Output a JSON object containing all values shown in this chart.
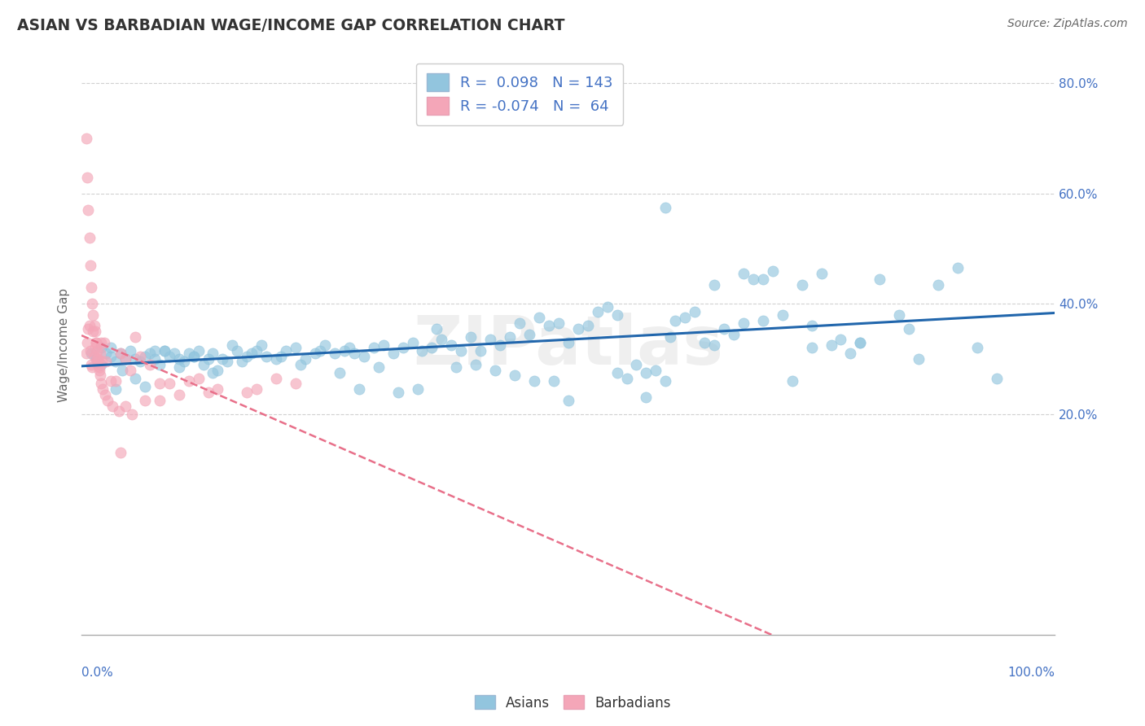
{
  "title": "ASIAN VS BARBADIAN WAGE/INCOME GAP CORRELATION CHART",
  "source_text": "Source: ZipAtlas.com",
  "ylabel": "Wage/Income Gap",
  "xlim": [
    0.0,
    100.0
  ],
  "ylim": [
    -20.0,
    85.0
  ],
  "y_ticks": [
    0.0,
    20.0,
    40.0,
    60.0,
    80.0
  ],
  "y_tick_labels": [
    "",
    "20.0%",
    "40.0%",
    "60.0%",
    "80.0%"
  ],
  "asian_R": 0.098,
  "asian_N": 143,
  "barbadian_R": -0.074,
  "barbadian_N": 64,
  "asian_color": "#92c5de",
  "barbadian_color": "#f4a6b8",
  "asian_line_color": "#2166ac",
  "barbadian_line_color": "#e8708a",
  "watermark": "ZIPatlas",
  "watermark_color": "#d8d8d8",
  "background_color": "#ffffff",
  "grid_color": "#cccccc",
  "title_color": "#333333",
  "axis_label_color": "#4472c4",
  "legend_label_color": "#4472c4",
  "asian_x": [
    1.0,
    1.5,
    2.0,
    2.0,
    2.5,
    3.0,
    3.5,
    4.0,
    4.5,
    5.0,
    5.5,
    6.0,
    6.5,
    7.0,
    7.5,
    8.0,
    8.5,
    9.0,
    9.5,
    10.0,
    10.5,
    11.0,
    11.5,
    12.0,
    13.0,
    13.5,
    14.0,
    15.0,
    16.0,
    17.0,
    17.5,
    18.0,
    19.0,
    20.0,
    21.0,
    22.0,
    23.0,
    24.0,
    25.0,
    26.0,
    27.0,
    27.5,
    28.0,
    29.0,
    30.0,
    31.0,
    32.0,
    33.0,
    34.0,
    35.0,
    36.0,
    37.0,
    38.0,
    39.0,
    40.0,
    41.0,
    42.0,
    43.0,
    44.0,
    45.0,
    46.0,
    47.0,
    48.0,
    49.0,
    50.0,
    51.0,
    52.0,
    53.0,
    54.0,
    55.0,
    56.0,
    57.0,
    58.0,
    59.0,
    60.0,
    61.0,
    62.0,
    63.0,
    64.0,
    65.0,
    66.0,
    67.0,
    68.0,
    69.0,
    70.0,
    71.0,
    72.0,
    73.0,
    74.0,
    75.0,
    76.0,
    77.0,
    78.0,
    79.0,
    80.0,
    82.0,
    84.0,
    86.0,
    88.0,
    90.0,
    3.0,
    3.5,
    4.2,
    5.5,
    6.5,
    7.5,
    8.5,
    10.0,
    11.5,
    12.5,
    13.5,
    14.5,
    15.5,
    16.5,
    18.5,
    20.5,
    22.5,
    24.5,
    26.5,
    28.5,
    30.5,
    32.5,
    34.5,
    36.5,
    38.5,
    40.5,
    42.5,
    44.5,
    46.5,
    48.5,
    65.0,
    68.0,
    85.0,
    92.0,
    94.0,
    60.0,
    70.0,
    75.0,
    80.0,
    60.5,
    50.0,
    55.0,
    58.0
  ],
  "asian_y": [
    31.0,
    30.0,
    32.0,
    29.0,
    31.0,
    30.5,
    29.5,
    31.0,
    30.0,
    31.5,
    30.0,
    29.5,
    30.5,
    31.0,
    30.0,
    29.0,
    31.5,
    30.5,
    31.0,
    30.0,
    29.5,
    31.0,
    30.5,
    31.5,
    30.0,
    31.0,
    28.0,
    29.5,
    31.5,
    30.5,
    31.0,
    31.5,
    30.5,
    30.0,
    31.5,
    32.0,
    30.0,
    31.0,
    32.5,
    31.0,
    31.5,
    32.0,
    31.0,
    30.5,
    32.0,
    32.5,
    31.0,
    32.0,
    33.0,
    31.5,
    32.0,
    33.5,
    32.5,
    31.5,
    34.0,
    31.5,
    33.5,
    32.5,
    34.0,
    36.5,
    34.5,
    37.5,
    36.0,
    36.5,
    33.0,
    35.5,
    36.0,
    38.5,
    39.5,
    38.0,
    26.5,
    29.0,
    27.5,
    28.0,
    57.5,
    37.0,
    37.5,
    38.5,
    33.0,
    32.5,
    35.5,
    34.5,
    45.5,
    44.5,
    44.5,
    46.0,
    38.0,
    26.0,
    43.5,
    32.0,
    45.5,
    32.5,
    33.5,
    31.0,
    33.0,
    44.5,
    38.0,
    30.0,
    43.5,
    46.5,
    32.0,
    24.5,
    28.0,
    26.5,
    25.0,
    31.5,
    31.5,
    28.5,
    30.5,
    29.0,
    27.5,
    30.0,
    32.5,
    29.5,
    32.5,
    30.5,
    29.0,
    31.5,
    27.5,
    24.5,
    28.5,
    24.0,
    24.5,
    35.5,
    28.5,
    29.0,
    28.0,
    27.0,
    26.0,
    26.0,
    43.5,
    36.5,
    35.5,
    32.0,
    26.5,
    26.0,
    37.0,
    36.0,
    33.0,
    34.0,
    22.5,
    27.5,
    23.0
  ],
  "barbadian_x": [
    0.5,
    0.6,
    0.7,
    0.8,
    0.9,
    1.0,
    1.1,
    1.2,
    1.3,
    1.4,
    1.5,
    1.6,
    1.7,
    1.8,
    1.9,
    2.0,
    2.1,
    2.3,
    2.5,
    3.0,
    3.5,
    4.0,
    4.5,
    5.0,
    5.5,
    6.0,
    7.0,
    8.0,
    9.0,
    10.0,
    11.0,
    12.0,
    13.0,
    14.0,
    17.0,
    18.0,
    20.0,
    22.0,
    0.5,
    0.6,
    0.7,
    0.8,
    0.9,
    1.0,
    1.1,
    1.2,
    1.3,
    1.4,
    1.5,
    1.6,
    1.7,
    1.8,
    1.9,
    2.0,
    2.2,
    2.4,
    2.7,
    3.2,
    3.8,
    4.5,
    5.2,
    6.5,
    8.0,
    4.0
  ],
  "barbadian_y": [
    31.0,
    33.0,
    35.5,
    36.0,
    31.5,
    29.0,
    28.5,
    35.0,
    30.5,
    32.0,
    33.0,
    30.0,
    29.0,
    28.0,
    31.0,
    33.0,
    29.5,
    33.0,
    29.5,
    26.0,
    26.0,
    31.0,
    30.0,
    28.0,
    34.0,
    30.5,
    29.0,
    25.5,
    25.5,
    23.5,
    26.0,
    26.5,
    24.0,
    24.5,
    24.0,
    24.5,
    26.5,
    25.5,
    70.0,
    63.0,
    57.0,
    52.0,
    47.0,
    43.0,
    40.0,
    38.0,
    36.0,
    35.0,
    33.0,
    31.5,
    30.0,
    28.5,
    27.0,
    25.5,
    24.5,
    23.5,
    22.5,
    21.5,
    20.5,
    21.5,
    20.0,
    22.5,
    22.5,
    13.0
  ]
}
